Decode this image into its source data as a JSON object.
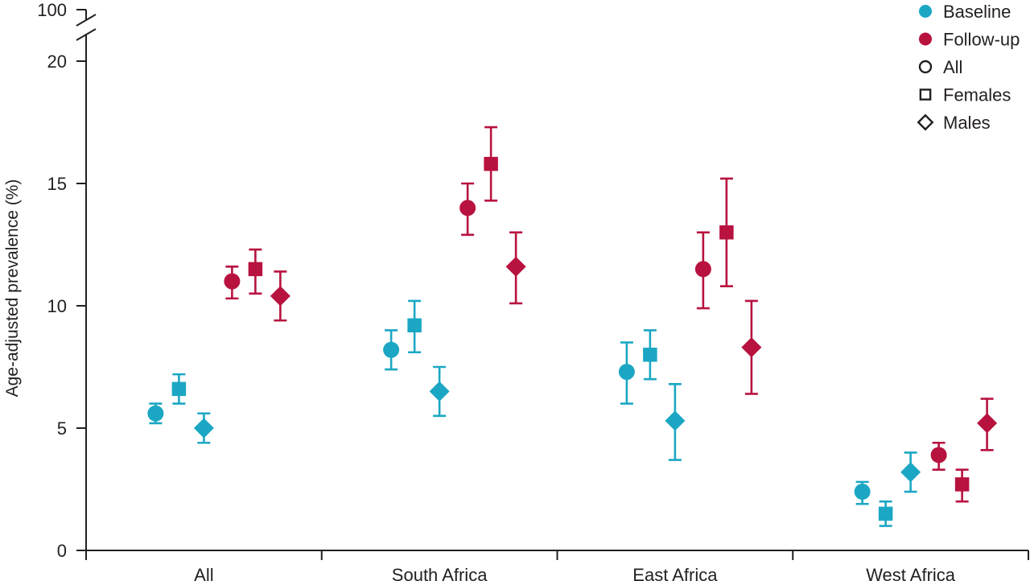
{
  "chart_data": {
    "type": "scatter",
    "title": "",
    "xlabel": "",
    "ylabel": "Age-adjusted prevalence (%)",
    "ylim": [
      0,
      20
    ],
    "y_break": {
      "upper_label": "100"
    },
    "y_ticks": [
      "0",
      "5",
      "10",
      "15",
      "20"
    ],
    "categories": [
      "All",
      "South Africa",
      "East Africa",
      "West Africa"
    ],
    "colors": {
      "Baseline": "#1ba7c4",
      "Follow-up": "#b8123f"
    },
    "legend": {
      "position": "top-right",
      "colors": [
        {
          "label": "Baseline",
          "color": "#1ba7c4"
        },
        {
          "label": "Follow-up",
          "color": "#b8123f"
        }
      ],
      "shapes": [
        {
          "label": "All",
          "marker": "circle"
        },
        {
          "label": "Females",
          "marker": "square"
        },
        {
          "label": "Males",
          "marker": "diamond"
        }
      ]
    },
    "series": [
      {
        "name": "Baseline",
        "group": "All",
        "marker": "circle",
        "values": [
          5.6,
          8.2,
          7.3,
          2.4
        ],
        "lower": [
          5.2,
          7.4,
          6.0,
          1.9
        ],
        "upper": [
          6.0,
          9.0,
          8.5,
          2.8
        ]
      },
      {
        "name": "Baseline",
        "group": "Females",
        "marker": "square",
        "values": [
          6.6,
          9.2,
          8.0,
          1.5
        ],
        "lower": [
          6.0,
          8.1,
          7.0,
          1.0
        ],
        "upper": [
          7.2,
          10.2,
          9.0,
          2.0
        ]
      },
      {
        "name": "Baseline",
        "group": "Males",
        "marker": "diamond",
        "values": [
          5.0,
          6.5,
          5.3,
          3.2
        ],
        "lower": [
          4.4,
          5.5,
          3.7,
          2.4
        ],
        "upper": [
          5.6,
          7.5,
          6.8,
          4.0
        ]
      },
      {
        "name": "Follow-up",
        "group": "All",
        "marker": "circle",
        "values": [
          11.0,
          14.0,
          11.5,
          3.9
        ],
        "lower": [
          10.3,
          12.9,
          9.9,
          3.3
        ],
        "upper": [
          11.6,
          15.0,
          13.0,
          4.4
        ]
      },
      {
        "name": "Follow-up",
        "group": "Females",
        "marker": "square",
        "values": [
          11.5,
          15.8,
          13.0,
          2.7
        ],
        "lower": [
          10.5,
          14.3,
          10.8,
          2.0
        ],
        "upper": [
          12.3,
          17.3,
          15.2,
          3.3
        ]
      },
      {
        "name": "Follow-up",
        "group": "Males",
        "marker": "diamond",
        "values": [
          10.4,
          11.6,
          8.3,
          5.2
        ],
        "lower": [
          9.4,
          10.1,
          6.4,
          4.1
        ],
        "upper": [
          11.4,
          13.0,
          10.2,
          6.2
        ]
      }
    ]
  }
}
